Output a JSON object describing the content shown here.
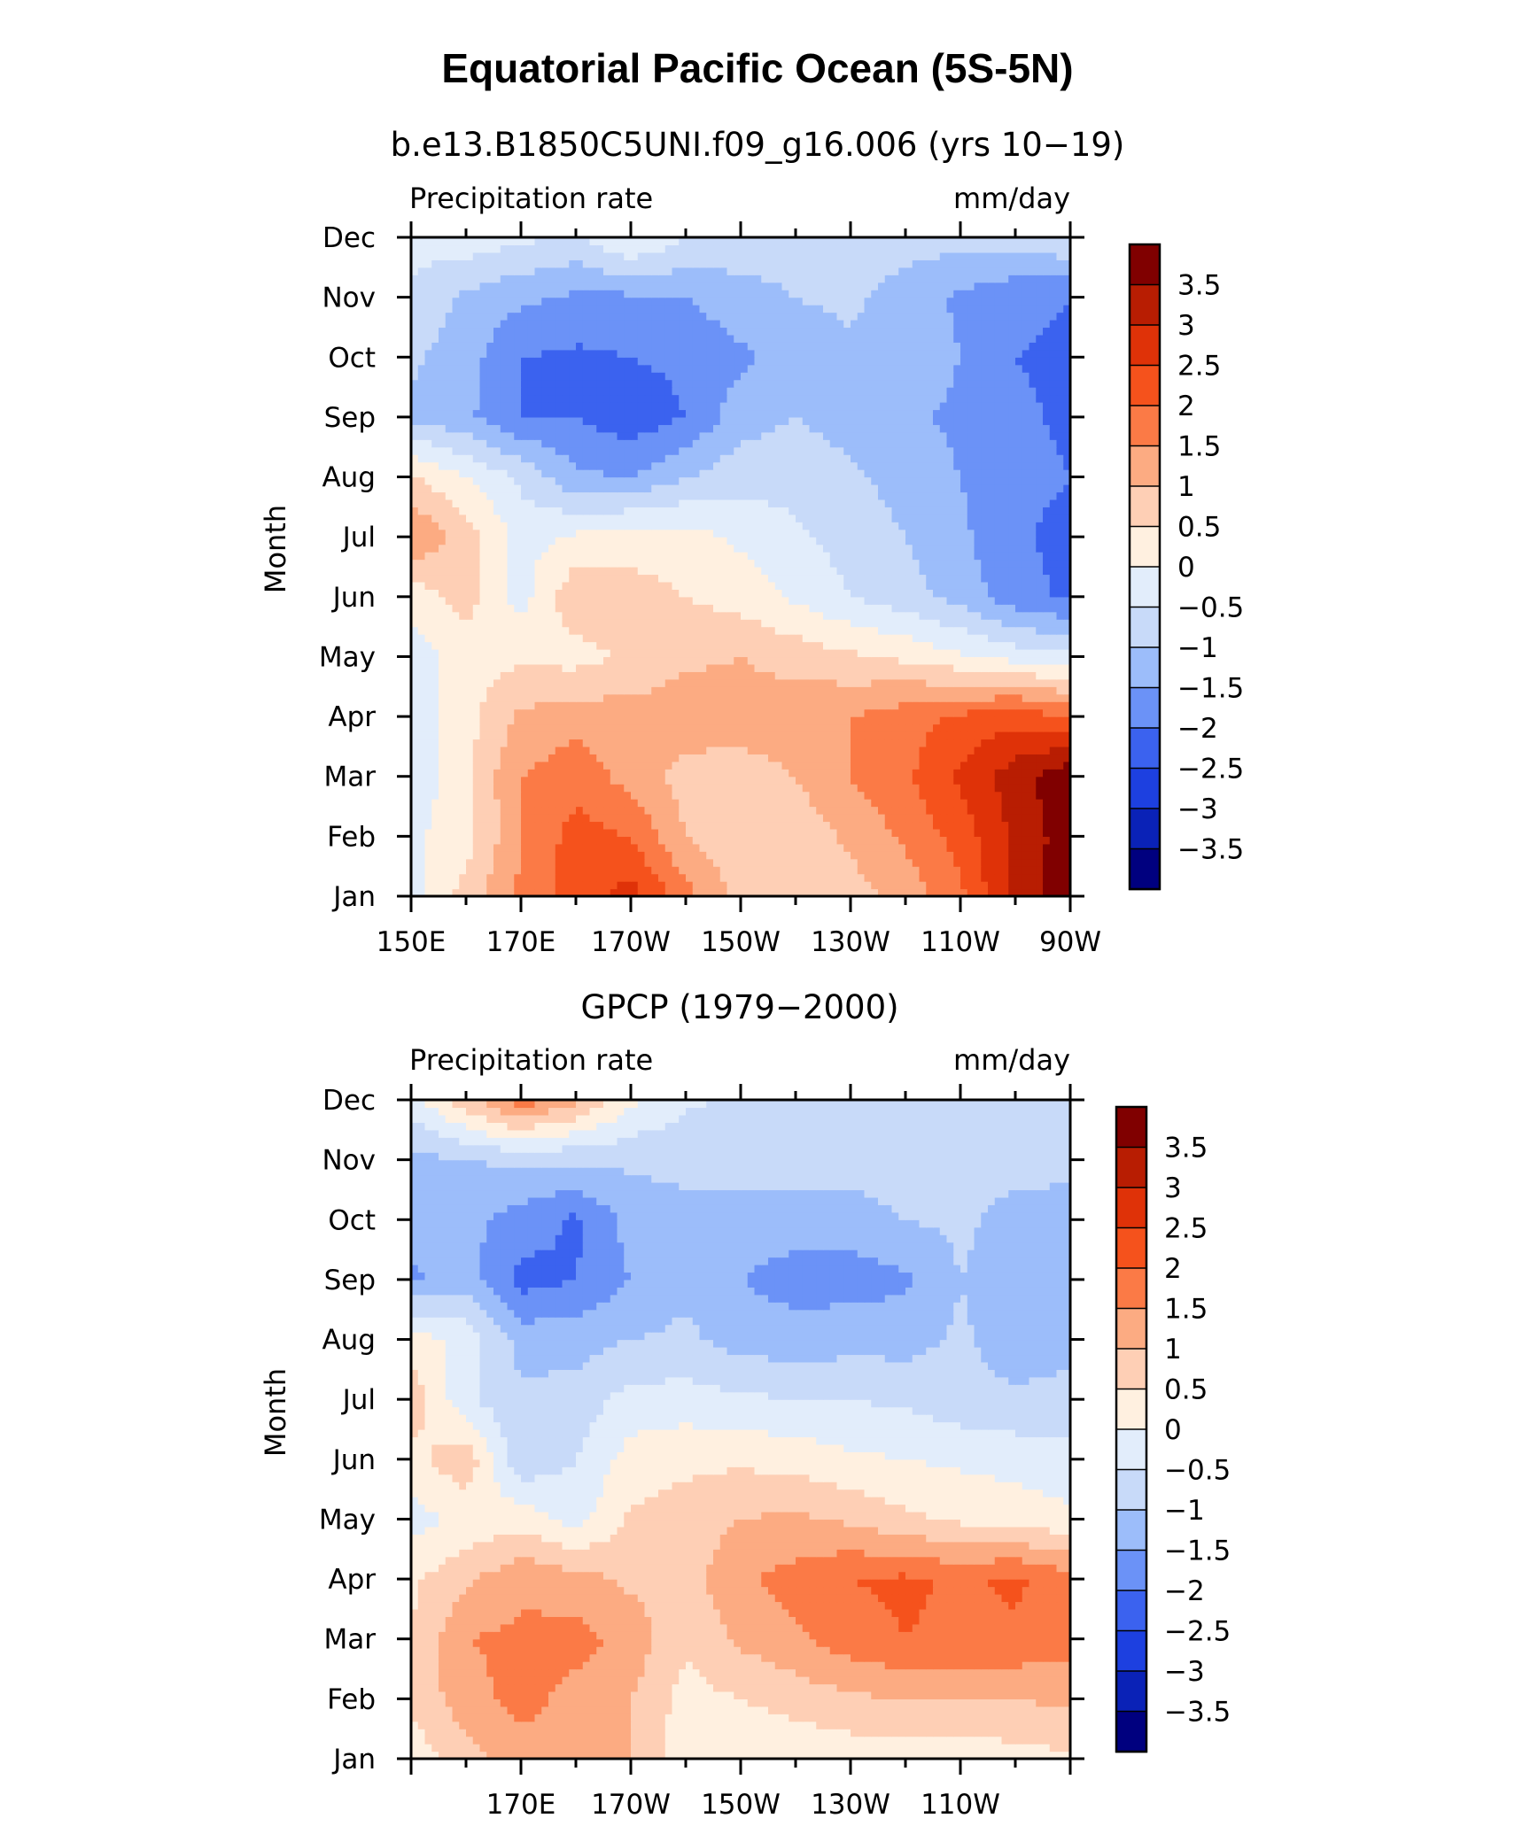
{
  "figure": {
    "title": "Equatorial Pacific Ocean (5S-5N)"
  },
  "chart_data": [
    {
      "type": "heatmap",
      "subtitle": "b.e13.B1850C5UNI.f09_g16.006 (yrs 10−19)",
      "left_label": "Precipitation rate",
      "right_label": "mm/day",
      "ylabel": "Month",
      "x_tick_labels": [
        "150E",
        "170E",
        "170W",
        "150W",
        "130W",
        "110W",
        "90W"
      ],
      "y_tick_labels": [
        "Jan",
        "Feb",
        "Mar",
        "Apr",
        "May",
        "Jun",
        "Jul",
        "Aug",
        "Sep",
        "Oct",
        "Nov",
        "Dec"
      ],
      "xlim": [
        "150E",
        "90W"
      ],
      "ylim": [
        "Jan",
        "Dec"
      ],
      "lon_grid": [
        "150E",
        "160E",
        "170E",
        "180",
        "170W",
        "160W",
        "150W",
        "140W",
        "130W",
        "120W",
        "110W",
        "100W",
        "90W"
      ],
      "values": [
        [
          -0.2,
          0.7,
          1.6,
          2.3,
          2.7,
          1.7,
          0.8,
          0.7,
          0.8,
          1.2,
          1.9,
          3.2,
          3.8
        ],
        [
          -0.1,
          0.3,
          1.5,
          2.2,
          2.0,
          1.0,
          0.6,
          0.7,
          1.1,
          1.6,
          2.2,
          3.1,
          3.8
        ],
        [
          -0.4,
          0.4,
          1.5,
          1.8,
          1.3,
          0.8,
          0.8,
          1.0,
          1.5,
          1.9,
          2.6,
          3.3,
          3.9
        ],
        [
          -0.3,
          0.3,
          1.1,
          1.3,
          1.2,
          1.3,
          1.2,
          1.3,
          1.5,
          1.8,
          2.1,
          2.3,
          2.0
        ],
        [
          -0.3,
          0.3,
          0.4,
          0.3,
          0.6,
          0.9,
          1.0,
          0.8,
          0.6,
          0.4,
          0.1,
          -0.2,
          -0.4
        ],
        [
          0.2,
          0.7,
          -0.2,
          0.9,
          0.7,
          0.5,
          0.3,
          -0.1,
          -0.5,
          -0.8,
          -1.2,
          -1.8,
          -2.1
        ],
        [
          1.5,
          0.8,
          -0.2,
          0.1,
          0.3,
          0.2,
          -0.1,
          -0.4,
          -0.7,
          -1.0,
          -1.4,
          -1.9,
          -2.2
        ],
        [
          0.6,
          0.0,
          -0.6,
          -1.4,
          -1.5,
          -1.0,
          -0.7,
          -0.7,
          -0.9,
          -1.2,
          -1.5,
          -1.8,
          -2.0
        ],
        [
          -1.1,
          -1.4,
          -2.0,
          -2.0,
          -2.3,
          -2.0,
          -1.2,
          -1.0,
          -1.2,
          -1.4,
          -1.6,
          -1.9,
          -2.1
        ],
        [
          -0.9,
          -1.3,
          -2.0,
          -2.1,
          -2.0,
          -1.9,
          -1.6,
          -1.3,
          -1.1,
          -1.2,
          -1.5,
          -2.0,
          -2.1
        ],
        [
          -0.6,
          -1.1,
          -1.4,
          -1.6,
          -1.6,
          -1.5,
          -1.2,
          -1.0,
          -0.9,
          -1.2,
          -1.6,
          -1.9,
          -2.0
        ],
        [
          -0.3,
          -0.2,
          -0.4,
          -0.6,
          0.1,
          -0.5,
          -0.7,
          -0.8,
          -0.8,
          -0.8,
          -0.8,
          -0.7,
          -0.5
        ]
      ]
    },
    {
      "type": "heatmap",
      "subtitle": "GPCP (1979−2000)",
      "left_label": "Precipitation rate",
      "right_label": "mm/day",
      "ylabel": "Month",
      "x_tick_labels": [
        "170E",
        "170W",
        "150W",
        "130W",
        "110W"
      ],
      "y_tick_labels": [
        "Jan",
        "Feb",
        "Mar",
        "Apr",
        "May",
        "Jun",
        "Jul",
        "Aug",
        "Sep",
        "Oct",
        "Nov",
        "Dec"
      ],
      "xlim": [
        "150E",
        "90W"
      ],
      "ylim": [
        "Jan",
        "Dec"
      ],
      "lon_grid": [
        "150E",
        "160E",
        "170E",
        "180",
        "170W",
        "160W",
        "150W",
        "140W",
        "130W",
        "120W",
        "110W",
        "100W",
        "90W"
      ],
      "values": [
        [
          0.2,
          0.8,
          1.2,
          1.5,
          1.0,
          0.2,
          0.1,
          0.1,
          0.2,
          0.2,
          0.2,
          0.3,
          0.4
        ],
        [
          0.6,
          1.3,
          1.7,
          1.3,
          1.0,
          0.3,
          0.5,
          0.7,
          0.9,
          1.0,
          1.0,
          1.0,
          1.1
        ],
        [
          0.5,
          1.5,
          1.6,
          1.7,
          1.3,
          0.6,
          1.1,
          1.4,
          1.8,
          2.0,
          1.9,
          1.9,
          1.7
        ],
        [
          0.4,
          0.9,
          1.4,
          1.2,
          0.9,
          0.8,
          1.4,
          1.7,
          2.0,
          2.1,
          1.9,
          2.1,
          1.7
        ],
        [
          -0.2,
          0.1,
          0.3,
          -0.2,
          0.6,
          0.7,
          1.0,
          1.1,
          0.9,
          0.6,
          0.4,
          0.3,
          0.1
        ],
        [
          0.3,
          0.9,
          -0.9,
          -0.5,
          0.2,
          0.4,
          0.4,
          0.3,
          0.1,
          0.0,
          -0.1,
          -0.2,
          -0.3
        ],
        [
          0.8,
          -0.4,
          -0.9,
          -0.8,
          -0.3,
          -0.3,
          -0.4,
          -0.5,
          -0.5,
          -0.6,
          -0.8,
          -0.9,
          -0.8
        ],
        [
          0.3,
          -0.2,
          -1.2,
          -1.2,
          -1.0,
          -0.9,
          -1.2,
          -1.3,
          -1.2,
          -1.2,
          -0.9,
          -1.3,
          -1.2
        ],
        [
          -1.6,
          -1.2,
          -2.2,
          -2.0,
          -1.5,
          -1.1,
          -1.5,
          -1.7,
          -1.7,
          -1.6,
          -1.0,
          -1.3,
          -1.2
        ],
        [
          -1.3,
          -1.4,
          -1.7,
          -2.1,
          -1.3,
          -1.1,
          -1.2,
          -1.3,
          -1.3,
          -1.0,
          -0.9,
          -1.2,
          -1.3
        ],
        [
          -1.2,
          -1.0,
          -0.9,
          -0.9,
          -0.9,
          -0.9,
          -0.8,
          -0.7,
          -0.7,
          -0.7,
          -0.7,
          -0.8,
          -0.8
        ],
        [
          -0.2,
          0.8,
          1.8,
          1.1,
          0.1,
          -0.4,
          -0.6,
          -0.6,
          -0.6,
          -0.5,
          -0.5,
          -0.6,
          -0.6
        ]
      ]
    }
  ],
  "colorbar": {
    "labels": [
      "3.5",
      "3",
      "2.5",
      "2",
      "1.5",
      "1",
      "0.5",
      "0",
      "−0.5",
      "−1",
      "−1.5",
      "−2",
      "−2.5",
      "−3",
      "−3.5"
    ],
    "levels": [
      -3.5,
      -3,
      -2.5,
      -2,
      -1.5,
      -1,
      -0.5,
      0,
      0.5,
      1,
      1.5,
      2,
      2.5,
      3,
      3.5
    ],
    "colors": [
      "#00007f",
      "#0a22b7",
      "#1d40e0",
      "#3b62ef",
      "#6b92f7",
      "#9cbdfa",
      "#c8daf9",
      "#e2edfb",
      "#fff0e0",
      "#fecfb5",
      "#fcab82",
      "#fb7a46",
      "#f5521c",
      "#df3208",
      "#b81d02",
      "#800000"
    ]
  }
}
